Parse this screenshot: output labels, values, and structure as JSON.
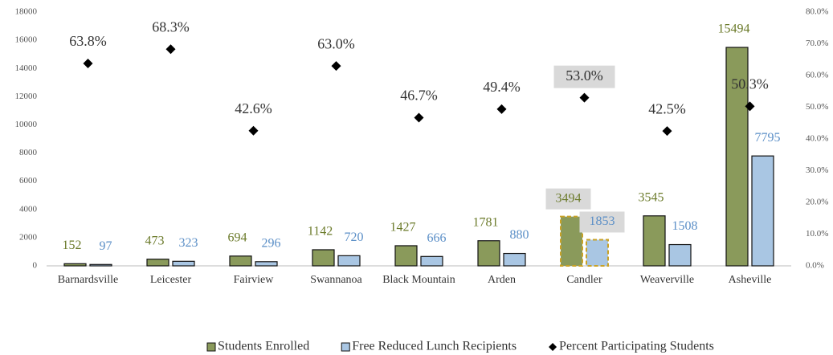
{
  "chart_data": {
    "type": "combo",
    "categories": [
      "Barnardsville",
      "Leicester",
      "Fairview",
      "Swannanoa",
      "Black Mountain",
      "Arden",
      "Candler",
      "Weaverville",
      "Asheville"
    ],
    "series": [
      {
        "name": "Students Enrolled",
        "type": "bar",
        "color": "#8a9a5b",
        "label_color": "#6b7a2a",
        "values": [
          152,
          473,
          694,
          1142,
          1427,
          1781,
          3494,
          3545,
          15494
        ]
      },
      {
        "name": "Free Reduced Lunch Recipients",
        "type": "bar",
        "color": "#a9c6e3",
        "label_color": "#5b8fc7",
        "values": [
          97,
          323,
          296,
          720,
          666,
          880,
          1853,
          1508,
          7795
        ]
      },
      {
        "name": "Percent Participating Students",
        "type": "scatter",
        "axis": "y2",
        "color": "#000000",
        "label_color": "#333333",
        "values": [
          63.8,
          68.3,
          42.6,
          63.0,
          46.7,
          49.4,
          53.0,
          42.5,
          50.3
        ],
        "value_labels": [
          "63.8%",
          "68.3%",
          "42.6%",
          "63.0%",
          "46.7%",
          "49.4%",
          "53.0%",
          "42.5%",
          "50.3%"
        ]
      }
    ],
    "highlight": "Candler",
    "ylim": [
      0,
      18000
    ],
    "yticks": [
      0,
      2000,
      4000,
      6000,
      8000,
      10000,
      12000,
      14000,
      16000,
      18000
    ],
    "y2lim": [
      0,
      80
    ],
    "y2ticks": [
      {
        "value": 0,
        "label": "0.0%"
      },
      {
        "value": 10,
        "label": "10.0%"
      },
      {
        "value": 20,
        "label": "20.0%"
      },
      {
        "value": 30,
        "label": "30.0%"
      },
      {
        "value": 40,
        "label": "40.0%"
      },
      {
        "value": 50,
        "label": "50.0%"
      },
      {
        "value": 60,
        "label": "60.0%"
      },
      {
        "value": 70,
        "label": "70.0%"
      },
      {
        "value": 80,
        "label": "80.0%"
      }
    ],
    "grid": false,
    "legend": "bottom"
  }
}
